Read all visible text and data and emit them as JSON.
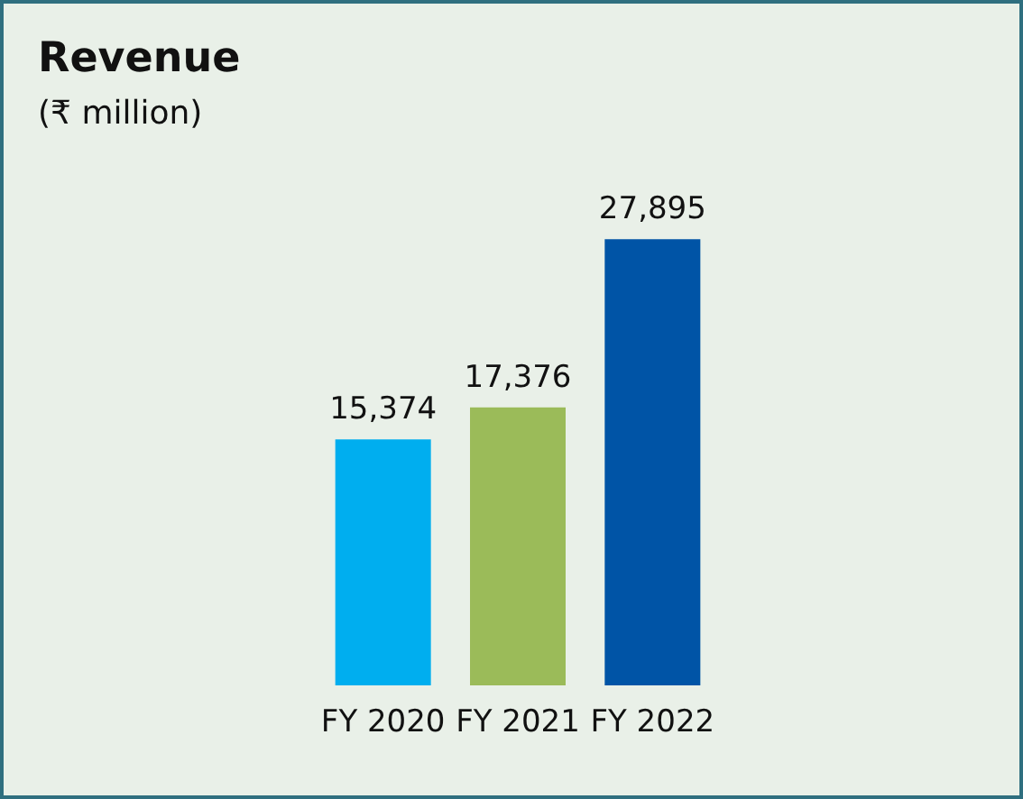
{
  "chart_data": {
    "type": "bar",
    "title": "Revenue",
    "subtitle": "(₹ million)",
    "categories": [
      "FY 2020",
      "FY 2021",
      "FY 2022"
    ],
    "values": [
      15374,
      17376,
      27895
    ],
    "colors": [
      "#00aeef",
      "#9bbb59",
      "#0054a6"
    ],
    "value_labels": [
      "15,374",
      "17,376",
      "27,895"
    ]
  }
}
